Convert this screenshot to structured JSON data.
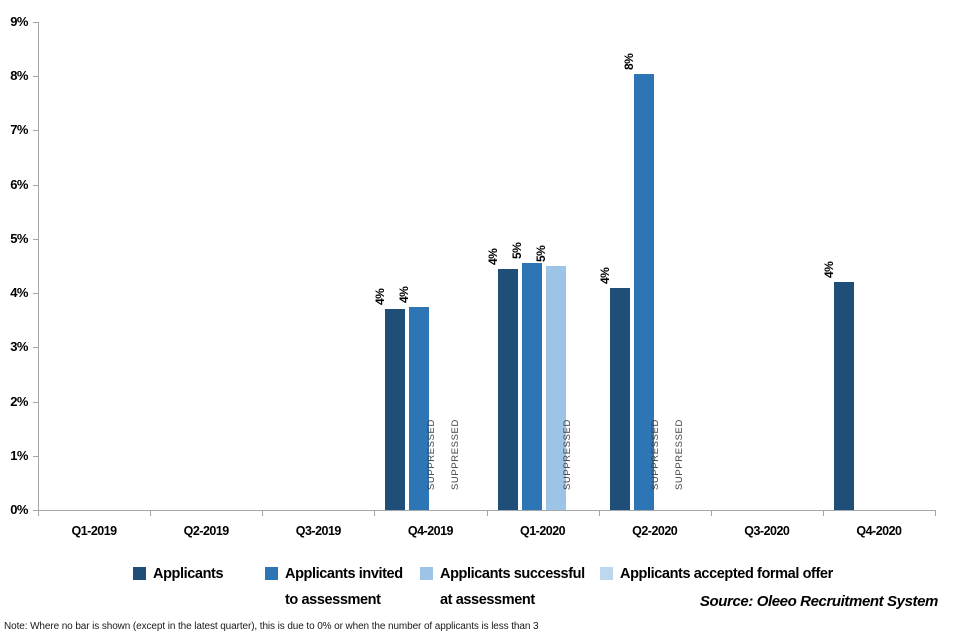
{
  "chart_data": {
    "type": "bar",
    "title": "",
    "categories": [
      "Q1-2019",
      "Q2-2019",
      "Q3-2019",
      "Q4-2019",
      "Q1-2020",
      "Q2-2020",
      "Q3-2020",
      "Q4-2020"
    ],
    "ylim": [
      0,
      9
    ],
    "ytick_labels": [
      "0%",
      "1%",
      "2%",
      "3%",
      "4%",
      "5%",
      "6%",
      "7%",
      "8%",
      "9%"
    ],
    "grid": false,
    "legend_position": "bottom",
    "suppressed_text": "SUPPRESSED",
    "series": [
      {
        "name": "Applicants",
        "legend_label": "Applicants",
        "color": "#1F4E79",
        "values": [
          null,
          null,
          null,
          3.7,
          4.45,
          4.1,
          null,
          4.2
        ],
        "labels": [
          null,
          null,
          null,
          "4%",
          "4%",
          "4%",
          null,
          "4%"
        ],
        "suppressed": [
          false,
          false,
          false,
          false,
          false,
          false,
          false,
          false
        ]
      },
      {
        "name": "Applicants invited to assessment",
        "legend_label": "Applicants invited\nto assessment",
        "color": "#2E75B6",
        "values": [
          null,
          null,
          null,
          3.75,
          4.55,
          8.05,
          null,
          null
        ],
        "labels": [
          null,
          null,
          null,
          "4%",
          "5%",
          "8%",
          null,
          null
        ],
        "suppressed": [
          false,
          false,
          false,
          false,
          false,
          false,
          false,
          false
        ]
      },
      {
        "name": "Applicants successful at assessment",
        "legend_label": "Applicants successful\nat assessment",
        "color": "#9DC3E6",
        "values": [
          null,
          null,
          null,
          null,
          4.5,
          null,
          null,
          null
        ],
        "labels": [
          null,
          null,
          null,
          null,
          "5%",
          null,
          null,
          null
        ],
        "suppressed": [
          false,
          false,
          false,
          true,
          false,
          true,
          false,
          false
        ]
      },
      {
        "name": "Applicants accepted formal offer",
        "legend_label": "Applicants accepted formal offer",
        "color": "#BDD7EE",
        "values": [
          null,
          null,
          null,
          null,
          null,
          null,
          null,
          null
        ],
        "labels": [
          null,
          null,
          null,
          null,
          null,
          null,
          null,
          null
        ],
        "suppressed": [
          false,
          false,
          false,
          true,
          true,
          true,
          false,
          false
        ]
      }
    ],
    "source": "Source: Oleeo Recruitment System",
    "note": "Note: Where no bar is shown (except in the latest quarter), this is due to 0% or when the number of applicants is less than 3"
  }
}
